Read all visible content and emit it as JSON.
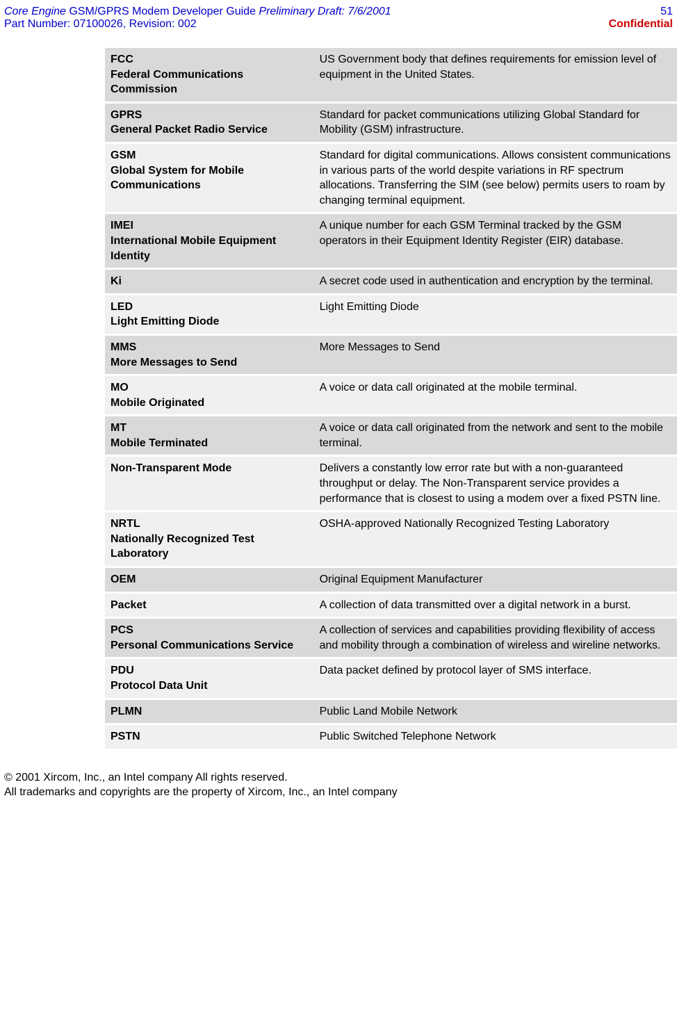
{
  "header": {
    "title_italic_left": "Core Engine",
    "title_mid": " GSM/GPRS Modem Developer Guide ",
    "title_italic_right": "Preliminary Draft: 7/6/2001",
    "part_number": "Part Number: 07100026, Revision: 002",
    "page_number": "51",
    "confidential": "Confidential"
  },
  "glossary": [
    {
      "abbr": "FCC",
      "expansion": "Federal Communications Commission",
      "definition": "US Government body that defines requirements for emission level of equipment in the United States.",
      "shade": "a"
    },
    {
      "abbr": "GPRS",
      "expansion": "General Packet Radio Service",
      "definition": "Standard for packet communications utilizing Global Standard for Mobility (GSM) infrastructure.",
      "shade": "a"
    },
    {
      "abbr": "GSM",
      "expansion": "Global System for Mobile Communications",
      "definition": "Standard for digital communications. Allows consistent communications in various parts of the world despite variations in RF spectrum allocations. Transferring the SIM (see below) permits users to roam by changing terminal equipment.",
      "shade": "b"
    },
    {
      "abbr": "IMEI",
      "expansion": "International Mobile Equipment Identity",
      "definition": "A unique number for each GSM Terminal tracked by the GSM operators in their Equipment Identity Register (EIR) database.",
      "shade": "a"
    },
    {
      "abbr": "Ki",
      "expansion": "",
      "definition": "A secret code used in authentication and encryption by the terminal.",
      "shade": "a"
    },
    {
      "abbr": "LED",
      "expansion": "Light Emitting Diode",
      "definition": "Light Emitting Diode",
      "shade": "b"
    },
    {
      "abbr": "MMS",
      "expansion": "More Messages to Send",
      "definition": "More Messages to Send",
      "shade": "a"
    },
    {
      "abbr": "MO",
      "expansion": "Mobile Originated",
      "definition": "A voice or data call originated at the mobile terminal.",
      "shade": "b"
    },
    {
      "abbr": "MT",
      "expansion": "Mobile Terminated",
      "definition": "A voice or data call originated from the network and sent to the mobile terminal.",
      "shade": "a"
    },
    {
      "abbr": "Non-Transparent Mode",
      "expansion": "",
      "definition": "Delivers a constantly low error rate but with a non-guaranteed throughput or delay. The Non-Transparent service provides a performance that is closest to using a modem over a fixed PSTN line.",
      "shade": "b"
    },
    {
      "abbr": "NRTL",
      "expansion": "Nationally Recognized Test Laboratory",
      "definition": "OSHA-approved Nationally Recognized Testing Laboratory",
      "shade": "b"
    },
    {
      "abbr": "OEM",
      "expansion": "",
      "definition": "Original Equipment Manufacturer",
      "shade": "a"
    },
    {
      "abbr": "Packet",
      "expansion": "",
      "definition": "A collection of data transmitted over a digital network in a burst.",
      "shade": "b"
    },
    {
      "abbr": "PCS",
      "expansion": "Personal Communications Service",
      "definition": "A collection of services and capabilities providing flexibility of access and mobility through a combination of wireless and wireline networks.",
      "shade": "a"
    },
    {
      "abbr": "PDU",
      "expansion": "Protocol Data Unit",
      "definition": "Data packet defined by protocol layer of SMS interface.",
      "shade": "b"
    },
    {
      "abbr": "PLMN",
      "expansion": "",
      "definition": "Public Land Mobile Network",
      "shade": "a"
    },
    {
      "abbr": "PSTN",
      "expansion": "",
      "definition": "Public Switched Telephone Network",
      "shade": "b"
    }
  ],
  "footer": {
    "line1": "© 2001 Xircom, Inc., an Intel company All rights reserved.",
    "line2": "All trademarks and copyrights are the property of Xircom, Inc., an Intel company"
  }
}
